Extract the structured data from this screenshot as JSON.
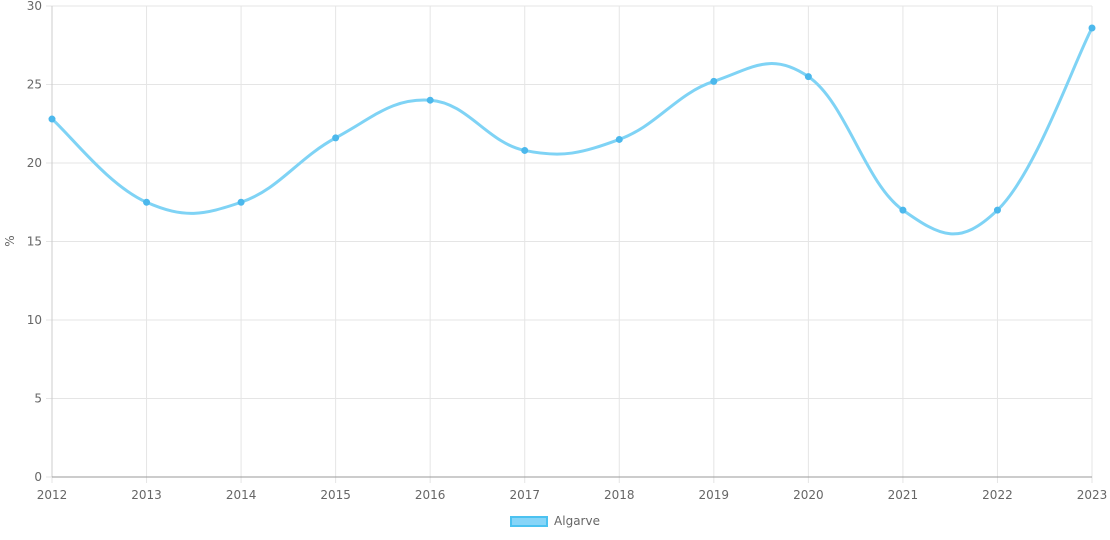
{
  "chart_data": {
    "type": "line",
    "categories": [
      "2012",
      "2013",
      "2014",
      "2015",
      "2016",
      "2017",
      "2018",
      "2019",
      "2020",
      "2021",
      "2022",
      "2023"
    ],
    "series": [
      {
        "name": "Algarve",
        "values": [
          22.8,
          17.5,
          17.5,
          21.6,
          24.0,
          20.8,
          21.5,
          25.2,
          25.5,
          17.0,
          17.0,
          28.6
        ]
      }
    ],
    "ylabel": "%",
    "xlabel": "",
    "ylim": [
      0,
      30
    ],
    "yticks": [
      "0",
      "5",
      "10",
      "15",
      "20",
      "25",
      "30"
    ],
    "grid": true,
    "legend_position": "bottom",
    "colors": {
      "line": "#7fd3f5",
      "point": "#4cb8ec",
      "grid": "#e5e5e5",
      "axis": "#999999",
      "text": "#666666"
    }
  }
}
